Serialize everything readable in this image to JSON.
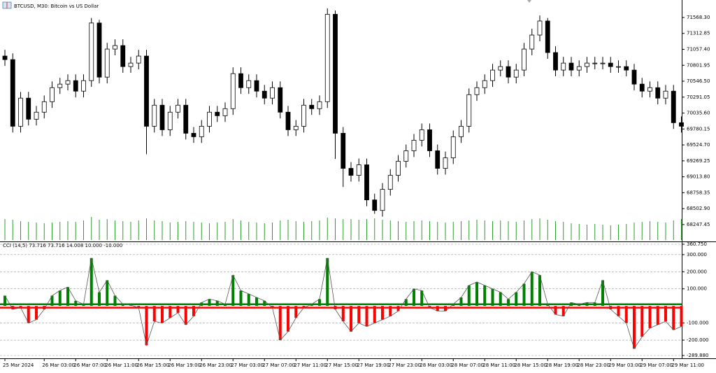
{
  "chart_data": [
    {
      "type": "candlestick",
      "title": "BTCUSD, M30:  Bitcoin vs US Dollar",
      "open": [
        70950,
        70893,
        69824,
        70275,
        69937,
        70050,
        70218,
        70443,
        70500,
        70556,
        70387,
        70556,
        71480,
        70612,
        71062,
        71118,
        70781,
        70837,
        70950,
        69824,
        70162,
        69768,
        70050,
        70162,
        69712,
        69656,
        69824,
        70050,
        69993,
        70106,
        70668,
        70443,
        70556,
        70387,
        70275,
        70443,
        70050,
        69768,
        69824,
        70162,
        70106,
        70218,
        71620,
        69712,
        69149,
        69037,
        69206,
        68643,
        68474,
        68812,
        69037,
        69262,
        69431,
        69600,
        69768,
        69431,
        69149,
        69318,
        69656,
        69824,
        70331,
        70443,
        70556,
        70725,
        70781,
        70612,
        70725,
        71062,
        71287,
        71512,
        71006,
        70725,
        70837,
        70725,
        70781,
        70837,
        70837,
        70837,
        70781,
        70781,
        70725,
        70500,
        70387,
        70443,
        70275,
        70387,
        69881
      ],
      "high": [
        71050,
        70993,
        70375,
        70375,
        70150,
        70318,
        70543,
        70600,
        70656,
        70656,
        70656,
        71560,
        71530,
        71162,
        71218,
        71218,
        70937,
        71050,
        71050,
        70262,
        70262,
        70150,
        70262,
        70262,
        69812,
        69924,
        70150,
        70150,
        70206,
        70768,
        70768,
        70656,
        70656,
        70487,
        70543,
        70543,
        70150,
        69924,
        70262,
        70262,
        70318,
        71714,
        71680,
        69812,
        69249,
        69306,
        69306,
        68743,
        68912,
        69137,
        69362,
        69531,
        69700,
        69868,
        69868,
        69531,
        69418,
        69756,
        69924,
        70431,
        70543,
        70656,
        70825,
        70881,
        70881,
        70825,
        71162,
        71387,
        71600,
        71560,
        71106,
        70937,
        70937,
        70881,
        70937,
        70937,
        70937,
        70937,
        70881,
        70881,
        70825,
        70600,
        70543,
        70543,
        70487,
        70487,
        69981
      ],
      "low": [
        70793,
        69724,
        69724,
        69837,
        69837,
        69950,
        70118,
        70343,
        70400,
        70287,
        70287,
        70456,
        70512,
        70512,
        70962,
        70681,
        70681,
        70737,
        69375,
        69724,
        69668,
        69668,
        69950,
        69612,
        69556,
        69556,
        69724,
        69893,
        69893,
        70006,
        70343,
        70343,
        70287,
        70175,
        70175,
        69950,
        69668,
        69668,
        69724,
        70006,
        70006,
        70118,
        69300,
        68850,
        68937,
        68937,
        68543,
        68420,
        68374,
        68712,
        68937,
        69162,
        69331,
        69500,
        69331,
        69049,
        69049,
        69218,
        69556,
        69724,
        70231,
        70343,
        70456,
        70625,
        70512,
        70512,
        70625,
        70962,
        71187,
        70906,
        70625,
        70625,
        70625,
        70625,
        70681,
        70737,
        70737,
        70681,
        70681,
        70625,
        70400,
        70287,
        70287,
        70175,
        70175,
        69781,
        69724
      ],
      "close": [
        70893,
        69824,
        70275,
        69937,
        70050,
        70218,
        70443,
        70500,
        70556,
        70387,
        70556,
        71480,
        70612,
        71062,
        71118,
        70781,
        70837,
        70950,
        69824,
        70162,
        69768,
        70050,
        70162,
        69712,
        69656,
        69824,
        70050,
        69993,
        70106,
        70668,
        70443,
        70556,
        70387,
        70275,
        70443,
        70050,
        69768,
        69824,
        70162,
        70106,
        70218,
        71620,
        69712,
        69149,
        69037,
        69206,
        68643,
        68474,
        68812,
        69037,
        69262,
        69431,
        69600,
        69768,
        69431,
        69149,
        69318,
        69656,
        69824,
        70331,
        70443,
        70556,
        70725,
        70781,
        70612,
        70725,
        71062,
        71287,
        71512,
        71006,
        70725,
        70837,
        70725,
        70781,
        70837,
        70837,
        70837,
        70781,
        70781,
        70725,
        70500,
        70387,
        70443,
        70275,
        70387,
        69881,
        69824
      ],
      "volume": [
        3000,
        2900,
        2700,
        2600,
        2500,
        2400,
        2500,
        2600,
        2700,
        2600,
        2800,
        3300,
        2900,
        3000,
        2800,
        2700,
        2600,
        2800,
        3100,
        2800,
        2700,
        2500,
        2600,
        2700,
        2600,
        2500,
        2400,
        2500,
        2600,
        3000,
        2800,
        2600,
        2500,
        2400,
        2500,
        2800,
        2900,
        2700,
        2600,
        2700,
        2800,
        3200,
        3100,
        3000,
        3000,
        2900,
        3000,
        3100,
        2900,
        2800,
        2700,
        2600,
        2700,
        2800,
        2700,
        2600,
        2500,
        2600,
        2700,
        2800,
        2900,
        2800,
        2700,
        2800,
        2700,
        2600,
        2800,
        3000,
        3100,
        2900,
        2700,
        2600,
        2400,
        2300,
        2200,
        2300,
        2200,
        2100,
        2200,
        2300,
        2500,
        2600,
        2700,
        2600,
        2500,
        2800,
        3000
      ],
      "volume_color": "#2e9b2e",
      "vlim": [
        0,
        10000
      ],
      "ylim": [
        67977,
        71714
      ],
      "yticks": [
        {
          "value": 71568.3,
          "label": "71568.30"
        },
        {
          "value": 71312.85,
          "label": "71312.85"
        },
        {
          "value": 71057.4,
          "label": "71057.40"
        },
        {
          "value": 70801.95,
          "label": "70801.95"
        },
        {
          "value": 70546.5,
          "label": "70546.50"
        },
        {
          "value": 70291.05,
          "label": "70291.05"
        },
        {
          "value": 70035.6,
          "label": "70035.60"
        },
        {
          "value": 69780.15,
          "label": "69780.15"
        },
        {
          "value": 69524.7,
          "label": "69524.70"
        },
        {
          "value": 69269.25,
          "label": "69269.25"
        },
        {
          "value": 69013.8,
          "label": "69013.80"
        },
        {
          "value": 68758.35,
          "label": "68758.35"
        },
        {
          "value": 68502.9,
          "label": "68502.90"
        },
        {
          "value": 68247.45,
          "label": "68247.45"
        }
      ]
    },
    {
      "type": "histogram-indicator",
      "title": "CCI (14,5) 73.716 73.716 14.008 10.000 -10.000",
      "values": [
        60,
        -20,
        -10,
        -100,
        -80,
        -20,
        60,
        90,
        110,
        30,
        10,
        280,
        80,
        150,
        60,
        10,
        5,
        -10,
        -230,
        -90,
        -100,
        -70,
        -40,
        -110,
        -60,
        20,
        40,
        30,
        10,
        180,
        90,
        70,
        50,
        30,
        -10,
        -200,
        -150,
        -70,
        -10,
        10,
        40,
        280,
        -20,
        -90,
        -150,
        -100,
        -120,
        -100,
        -80,
        -60,
        -30,
        40,
        100,
        90,
        -10,
        -30,
        -30,
        10,
        50,
        120,
        140,
        120,
        100,
        80,
        40,
        80,
        130,
        200,
        180,
        10,
        -50,
        -60,
        20,
        10,
        20,
        20,
        150,
        -20,
        -60,
        -100,
        -250,
        -180,
        -130,
        -110,
        -90,
        -140,
        -120
      ],
      "levels": [
        10,
        -10
      ],
      "up_color": "#008000",
      "down_color": "#ff0000",
      "neutral_color": "#808080",
      "ylim": [
        -289.88,
        360.75
      ],
      "yticks": [
        {
          "value": 360.75,
          "label": "360.750"
        },
        {
          "value": 300,
          "label": "300.000"
        },
        {
          "value": 200,
          "label": "200.000"
        },
        {
          "value": 100,
          "label": "100.000"
        },
        {
          "value": -100,
          "label": "-100.000"
        },
        {
          "value": -200,
          "label": "-200.000"
        },
        {
          "value": -289.88,
          "label": "-289.880"
        }
      ],
      "xticks": [
        {
          "value": 0,
          "label": "25 Mar 2024"
        },
        {
          "value": 5,
          "label": "26 Mar 03:00"
        },
        {
          "value": 9,
          "label": "26 Mar 07:00"
        },
        {
          "value": 13,
          "label": "26 Mar 11:00"
        },
        {
          "value": 17,
          "label": "26 Mar 15:00"
        },
        {
          "value": 21,
          "label": "26 Mar 19:00"
        },
        {
          "value": 25,
          "label": "26 Mar 23:00"
        },
        {
          "value": 29,
          "label": "27 Mar 03:00"
        },
        {
          "value": 33,
          "label": "27 Mar 07:00"
        },
        {
          "value": 37,
          "label": "27 Mar 11:00"
        },
        {
          "value": 41,
          "label": "27 Mar 15:00"
        },
        {
          "value": 45,
          "label": "27 Mar 19:00"
        },
        {
          "value": 49,
          "label": "27 Mar 23:00"
        },
        {
          "value": 53,
          "label": "28 Mar 03:00"
        },
        {
          "value": 57,
          "label": "28 Mar 07:00"
        },
        {
          "value": 61,
          "label": "28 Mar 11:00"
        },
        {
          "value": 65,
          "label": "28 Mar 15:00"
        },
        {
          "value": 69,
          "label": "28 Mar 19:00"
        },
        {
          "value": 73,
          "label": "28 Mar 23:00"
        },
        {
          "value": 77,
          "label": "29 Mar 03:00"
        },
        {
          "value": 81,
          "label": "29 Mar 07:00"
        },
        {
          "value": 85,
          "label": "29 Mar 11:00"
        }
      ]
    }
  ]
}
